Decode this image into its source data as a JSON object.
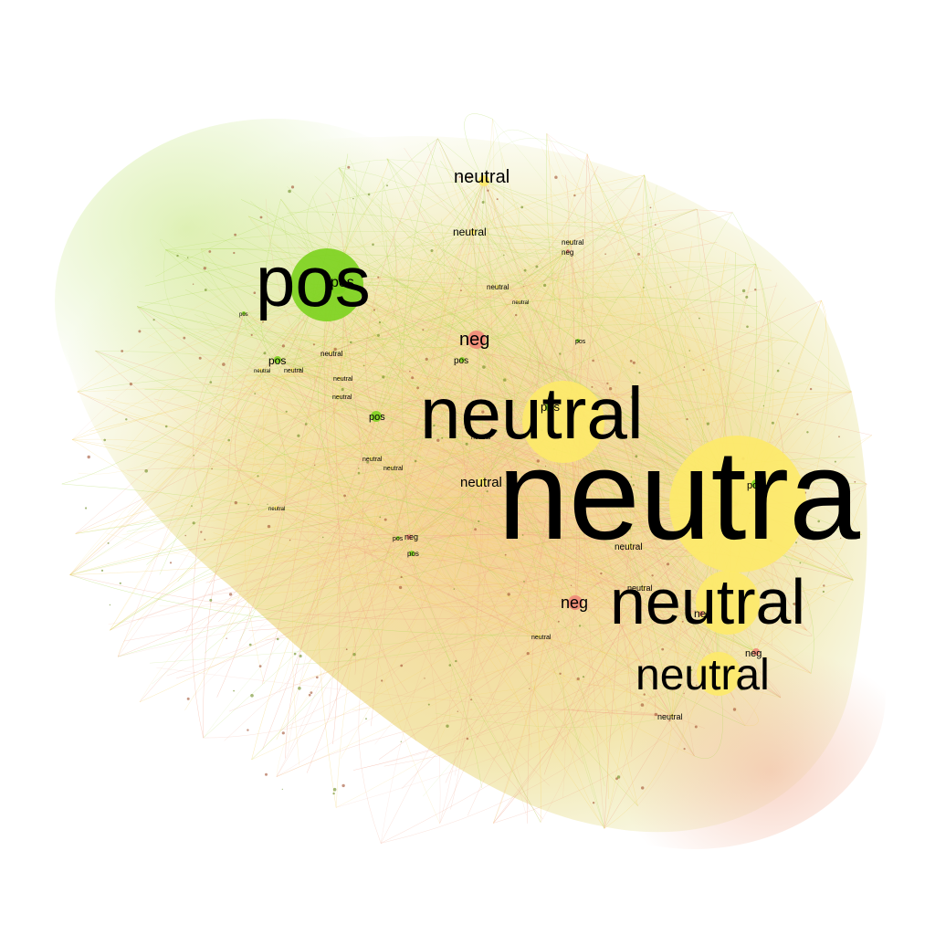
{
  "colors": {
    "background": "#ffffff",
    "pos": "#7ed321",
    "neg": "#f08a78",
    "neutral": "#fde96a",
    "edge_pos": "#a8d84a",
    "edge_neg": "#f09a80",
    "edge_neutral": "#f4d060",
    "label": "#000000"
  },
  "nodes": [
    {
      "sentiment": "neutral",
      "text": "neutra",
      "size": "xl"
    },
    {
      "sentiment": "neutral",
      "text": "neutral",
      "size": "l"
    },
    {
      "sentiment": "pos",
      "text": "pos",
      "size": "l"
    },
    {
      "sentiment": "neutral",
      "text": "neutral",
      "size": "l"
    },
    {
      "sentiment": "neutral",
      "text": "neutral",
      "size": "m"
    },
    {
      "sentiment": "neutral",
      "text": "neutral",
      "size": "s"
    },
    {
      "sentiment": "neg",
      "text": "neg",
      "size": "s"
    },
    {
      "sentiment": "neg",
      "text": "neg",
      "size": "s"
    },
    {
      "sentiment": "neutral",
      "text": "neutral",
      "size": "s"
    },
    {
      "sentiment": "pos",
      "text": "pos",
      "size": "s"
    },
    {
      "sentiment": "pos",
      "text": "pos",
      "size": "s"
    },
    {
      "sentiment": "pos",
      "text": "pos",
      "size": "s"
    },
    {
      "sentiment": "pos",
      "text": "pos",
      "size": "s"
    },
    {
      "sentiment": "pos",
      "text": "pos",
      "size": "s"
    },
    {
      "sentiment": "neg",
      "text": "neg",
      "size": "s"
    },
    {
      "sentiment": "neutral",
      "text": "neutral",
      "size": "xs"
    },
    {
      "sentiment": "neutral",
      "text": "neutral",
      "size": "xs"
    },
    {
      "sentiment": "neutral",
      "text": "neutral",
      "size": "xs"
    },
    {
      "sentiment": "neutral",
      "text": "neutral",
      "size": "xs"
    },
    {
      "sentiment": "neg",
      "text": "neg",
      "size": "xs"
    },
    {
      "sentiment": "neutral",
      "text": "neutral",
      "size": "xs"
    },
    {
      "sentiment": "neutral",
      "text": "neutral",
      "size": "xs"
    },
    {
      "sentiment": "neutral",
      "text": "neutral",
      "size": "xs"
    },
    {
      "sentiment": "pos",
      "text": "pos",
      "size": "xs"
    },
    {
      "sentiment": "pos",
      "text": "pos",
      "size": "xs"
    },
    {
      "sentiment": "neg",
      "text": "neg",
      "size": "xs"
    },
    {
      "sentiment": "neg",
      "text": "neg",
      "size": "xs"
    },
    {
      "sentiment": "neutral",
      "text": "neutral",
      "size": "xs"
    },
    {
      "sentiment": "neutral",
      "text": "neutral",
      "size": "xs"
    },
    {
      "sentiment": "neutral",
      "text": "neutral",
      "size": "xs"
    },
    {
      "sentiment": "neutral",
      "text": "neutral",
      "size": "xs"
    },
    {
      "sentiment": "neutral",
      "text": "neutral",
      "size": "xs"
    },
    {
      "sentiment": "neutral",
      "text": "neutral",
      "size": "xs"
    },
    {
      "sentiment": "pos",
      "text": "pos",
      "size": "xs"
    },
    {
      "sentiment": "pos",
      "text": "pos",
      "size": "xs"
    },
    {
      "sentiment": "neutral",
      "text": "neutral",
      "size": "xs"
    },
    {
      "sentiment": "pos",
      "text": "pos",
      "size": "xs"
    },
    {
      "sentiment": "neutral",
      "text": "neutral",
      "size": "xs"
    },
    {
      "sentiment": "neutral",
      "text": "neutral",
      "size": "xs"
    },
    {
      "sentiment": "neutral",
      "text": "neutral",
      "size": "xs"
    }
  ]
}
